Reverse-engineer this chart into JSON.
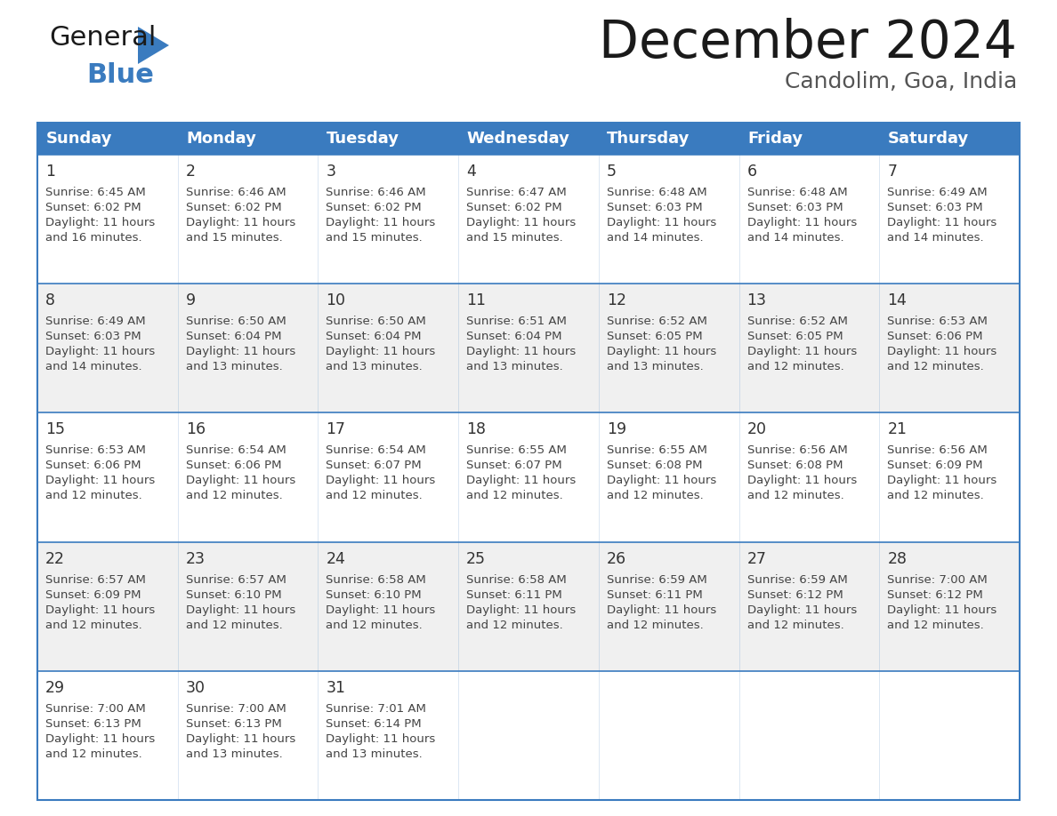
{
  "title": "December 2024",
  "subtitle": "Candolim, Goa, India",
  "header_color": "#3a7bbf",
  "header_text_color": "#ffffff",
  "cell_bg_white": "#ffffff",
  "cell_bg_gray": "#f0f0f0",
  "border_color": "#3a7bbf",
  "text_color": "#444444",
  "day_num_color": "#333333",
  "days_of_week": [
    "Sunday",
    "Monday",
    "Tuesday",
    "Wednesday",
    "Thursday",
    "Friday",
    "Saturday"
  ],
  "calendar_data": [
    [
      {
        "day": 1,
        "sunrise": "6:45 AM",
        "sunset": "6:02 PM",
        "daylight": "11 hours and 16 minutes."
      },
      {
        "day": 2,
        "sunrise": "6:46 AM",
        "sunset": "6:02 PM",
        "daylight": "11 hours and 15 minutes."
      },
      {
        "day": 3,
        "sunrise": "6:46 AM",
        "sunset": "6:02 PM",
        "daylight": "11 hours and 15 minutes."
      },
      {
        "day": 4,
        "sunrise": "6:47 AM",
        "sunset": "6:02 PM",
        "daylight": "11 hours and 15 minutes."
      },
      {
        "day": 5,
        "sunrise": "6:48 AM",
        "sunset": "6:03 PM",
        "daylight": "11 hours and 14 minutes."
      },
      {
        "day": 6,
        "sunrise": "6:48 AM",
        "sunset": "6:03 PM",
        "daylight": "11 hours and 14 minutes."
      },
      {
        "day": 7,
        "sunrise": "6:49 AM",
        "sunset": "6:03 PM",
        "daylight": "11 hours and 14 minutes."
      }
    ],
    [
      {
        "day": 8,
        "sunrise": "6:49 AM",
        "sunset": "6:03 PM",
        "daylight": "11 hours and 14 minutes."
      },
      {
        "day": 9,
        "sunrise": "6:50 AM",
        "sunset": "6:04 PM",
        "daylight": "11 hours and 13 minutes."
      },
      {
        "day": 10,
        "sunrise": "6:50 AM",
        "sunset": "6:04 PM",
        "daylight": "11 hours and 13 minutes."
      },
      {
        "day": 11,
        "sunrise": "6:51 AM",
        "sunset": "6:04 PM",
        "daylight": "11 hours and 13 minutes."
      },
      {
        "day": 12,
        "sunrise": "6:52 AM",
        "sunset": "6:05 PM",
        "daylight": "11 hours and 13 minutes."
      },
      {
        "day": 13,
        "sunrise": "6:52 AM",
        "sunset": "6:05 PM",
        "daylight": "11 hours and 12 minutes."
      },
      {
        "day": 14,
        "sunrise": "6:53 AM",
        "sunset": "6:06 PM",
        "daylight": "11 hours and 12 minutes."
      }
    ],
    [
      {
        "day": 15,
        "sunrise": "6:53 AM",
        "sunset": "6:06 PM",
        "daylight": "11 hours and 12 minutes."
      },
      {
        "day": 16,
        "sunrise": "6:54 AM",
        "sunset": "6:06 PM",
        "daylight": "11 hours and 12 minutes."
      },
      {
        "day": 17,
        "sunrise": "6:54 AM",
        "sunset": "6:07 PM",
        "daylight": "11 hours and 12 minutes."
      },
      {
        "day": 18,
        "sunrise": "6:55 AM",
        "sunset": "6:07 PM",
        "daylight": "11 hours and 12 minutes."
      },
      {
        "day": 19,
        "sunrise": "6:55 AM",
        "sunset": "6:08 PM",
        "daylight": "11 hours and 12 minutes."
      },
      {
        "day": 20,
        "sunrise": "6:56 AM",
        "sunset": "6:08 PM",
        "daylight": "11 hours and 12 minutes."
      },
      {
        "day": 21,
        "sunrise": "6:56 AM",
        "sunset": "6:09 PM",
        "daylight": "11 hours and 12 minutes."
      }
    ],
    [
      {
        "day": 22,
        "sunrise": "6:57 AM",
        "sunset": "6:09 PM",
        "daylight": "11 hours and 12 minutes."
      },
      {
        "day": 23,
        "sunrise": "6:57 AM",
        "sunset": "6:10 PM",
        "daylight": "11 hours and 12 minutes."
      },
      {
        "day": 24,
        "sunrise": "6:58 AM",
        "sunset": "6:10 PM",
        "daylight": "11 hours and 12 minutes."
      },
      {
        "day": 25,
        "sunrise": "6:58 AM",
        "sunset": "6:11 PM",
        "daylight": "11 hours and 12 minutes."
      },
      {
        "day": 26,
        "sunrise": "6:59 AM",
        "sunset": "6:11 PM",
        "daylight": "11 hours and 12 minutes."
      },
      {
        "day": 27,
        "sunrise": "6:59 AM",
        "sunset": "6:12 PM",
        "daylight": "11 hours and 12 minutes."
      },
      {
        "day": 28,
        "sunrise": "7:00 AM",
        "sunset": "6:12 PM",
        "daylight": "11 hours and 12 minutes."
      }
    ],
    [
      {
        "day": 29,
        "sunrise": "7:00 AM",
        "sunset": "6:13 PM",
        "daylight": "11 hours and 12 minutes."
      },
      {
        "day": 30,
        "sunrise": "7:00 AM",
        "sunset": "6:13 PM",
        "daylight": "11 hours and 13 minutes."
      },
      {
        "day": 31,
        "sunrise": "7:01 AM",
        "sunset": "6:14 PM",
        "daylight": "11 hours and 13 minutes."
      },
      null,
      null,
      null,
      null
    ]
  ],
  "logo_general_color": "#1a1a1a",
  "logo_blue_color": "#3a7bbf",
  "logo_triangle_color": "#3a7bbf"
}
